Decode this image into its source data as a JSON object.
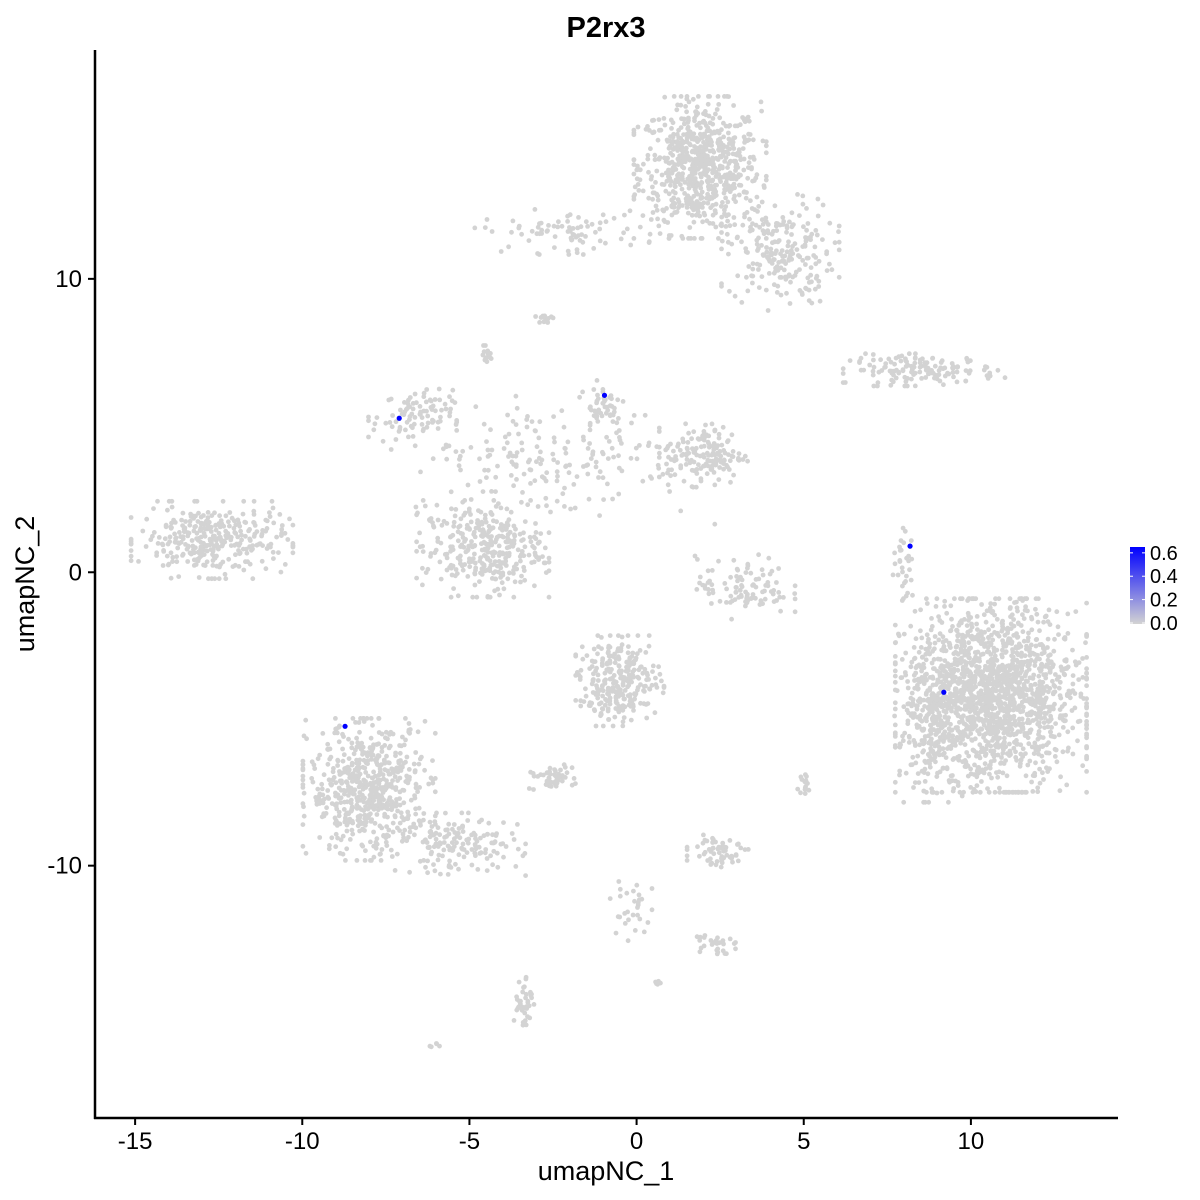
{
  "chart_data": {
    "type": "scatter",
    "title": "P2rx3",
    "xlabel": "umapNC_1",
    "ylabel": "umapNC_2",
    "xlim": [
      -16.2,
      14.4
    ],
    "ylim": [
      -18.6,
      17.8
    ],
    "xticks": [
      -15,
      -10,
      -5,
      0,
      5,
      10
    ],
    "yticks": [
      -10,
      0,
      10
    ],
    "xtick_labels": [
      "-15",
      "-10",
      "-5",
      "0",
      "5",
      "10"
    ],
    "ytick_labels": [
      "-10",
      "0",
      "10"
    ],
    "grid": false,
    "colors": {
      "low": "#d3d3d3",
      "high": "#0000ff"
    },
    "legend": {
      "placement": "right",
      "type": "colorbar",
      "range": [
        0,
        0.65
      ],
      "ticks": [
        0.0,
        0.2,
        0.4,
        0.6
      ],
      "tick_labels": [
        "0.0",
        "0.2",
        "0.4",
        "0.6"
      ]
    },
    "background_clusters": [
      {
        "cx": 1.9,
        "cy": 13.8,
        "sx": 0.9,
        "sy": 1.1,
        "n": 700
      },
      {
        "cx": 4.3,
        "cy": 10.9,
        "sx": 0.8,
        "sy": 0.9,
        "n": 220
      },
      {
        "cx": -2.2,
        "cy": 11.6,
        "sx": 1.2,
        "sy": 0.35,
        "n": 80
      },
      {
        "cx": 8.6,
        "cy": 6.9,
        "sx": 1.1,
        "sy": 0.25,
        "n": 140
      },
      {
        "cx": -12.7,
        "cy": 1.1,
        "sx": 1.1,
        "sy": 0.6,
        "n": 330
      },
      {
        "cx": -6.7,
        "cy": 5.3,
        "sx": 0.6,
        "sy": 0.45,
        "n": 90
      },
      {
        "cx": 2.0,
        "cy": 4.0,
        "sx": 0.6,
        "sy": 0.5,
        "n": 150
      },
      {
        "cx": -1.0,
        "cy": 5.7,
        "sx": 0.35,
        "sy": 0.5,
        "n": 50
      },
      {
        "cx": -2.5,
        "cy": 3.8,
        "sx": 2.2,
        "sy": 1.0,
        "n": 200
      },
      {
        "cx": -4.6,
        "cy": 0.8,
        "sx": 0.9,
        "sy": 0.75,
        "n": 330
      },
      {
        "cx": 3.2,
        "cy": -0.5,
        "sx": 0.7,
        "sy": 0.5,
        "n": 100
      },
      {
        "cx": 8.0,
        "cy": 0.2,
        "sx": 0.15,
        "sy": 0.6,
        "n": 30
      },
      {
        "cx": 10.6,
        "cy": -4.2,
        "sx": 1.3,
        "sy": 1.5,
        "n": 1700
      },
      {
        "cx": 8.8,
        "cy": -5.2,
        "sx": 0.5,
        "sy": 1.2,
        "n": 150
      },
      {
        "cx": -8.0,
        "cy": -7.4,
        "sx": 0.9,
        "sy": 1.1,
        "n": 600
      },
      {
        "cx": -5.3,
        "cy": -9.3,
        "sx": 0.9,
        "sy": 0.5,
        "n": 150
      },
      {
        "cx": -0.5,
        "cy": -3.7,
        "sx": 0.6,
        "sy": 0.7,
        "n": 280
      },
      {
        "cx": -2.6,
        "cy": -7.0,
        "sx": 0.35,
        "sy": 0.2,
        "n": 50
      },
      {
        "cx": 2.5,
        "cy": -9.5,
        "sx": 0.45,
        "sy": 0.25,
        "n": 60
      },
      {
        "cx": 2.3,
        "cy": -12.6,
        "sx": 0.3,
        "sy": 0.2,
        "n": 30
      },
      {
        "cx": -3.4,
        "cy": -14.6,
        "sx": 0.15,
        "sy": 0.5,
        "n": 40
      },
      {
        "cx": -0.2,
        "cy": -11.5,
        "sx": 0.3,
        "sy": 0.6,
        "n": 30
      },
      {
        "cx": -2.8,
        "cy": 8.6,
        "sx": 0.15,
        "sy": 0.12,
        "n": 15
      },
      {
        "cx": -4.5,
        "cy": 7.4,
        "sx": 0.12,
        "sy": 0.15,
        "n": 15
      },
      {
        "cx": 5.0,
        "cy": -7.2,
        "sx": 0.12,
        "sy": 0.2,
        "n": 15
      },
      {
        "cx": -6.0,
        "cy": -16.1,
        "sx": 0.1,
        "sy": 0.05,
        "n": 5
      },
      {
        "cx": 0.6,
        "cy": -14.0,
        "sx": 0.1,
        "sy": 0.05,
        "n": 5
      }
    ],
    "expressing_points": [
      {
        "x": -7.1,
        "y": 5.25,
        "value": 0.65
      },
      {
        "x": -0.96,
        "y": 6.03,
        "value": 0.65
      },
      {
        "x": 8.18,
        "y": 0.89,
        "value": 0.65
      },
      {
        "x": 9.19,
        "y": -4.09,
        "value": 0.65
      },
      {
        "x": -8.72,
        "y": -5.25,
        "value": 0.65
      }
    ]
  }
}
